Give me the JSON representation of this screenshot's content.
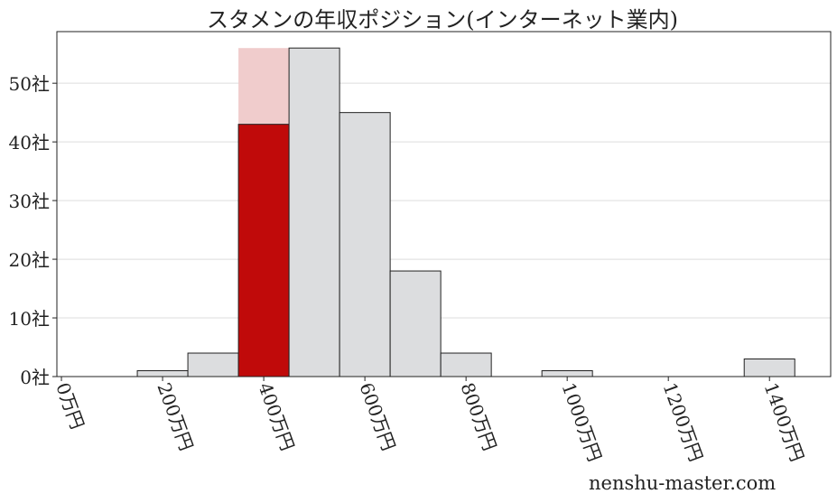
{
  "chart_data": {
    "type": "bar",
    "title": "スタメンの年収ポジション(インターネット業内)",
    "xlabel": "",
    "ylabel": "",
    "x_unit_suffix": "万円",
    "y_unit_suffix": "社",
    "bin_width": 100,
    "bins": [
      {
        "center": 200,
        "value": 1
      },
      {
        "center": 300,
        "value": 4
      },
      {
        "center": 400,
        "value": 43,
        "highlight": true,
        "highlight_total": 56
      },
      {
        "center": 500,
        "value": 56
      },
      {
        "center": 600,
        "value": 45
      },
      {
        "center": 700,
        "value": 18
      },
      {
        "center": 800,
        "value": 4
      },
      {
        "center": 1000,
        "value": 1
      },
      {
        "center": 1400,
        "value": 3
      }
    ],
    "xticks": [
      "0万円",
      "200万円",
      "400万円",
      "600万円",
      "800万円",
      "1000万円",
      "1200万円",
      "1400万円"
    ],
    "xtick_values": [
      0,
      200,
      400,
      600,
      800,
      1000,
      1200,
      1400
    ],
    "yticks": [
      "0社",
      "10社",
      "20社",
      "30社",
      "40社",
      "50社"
    ],
    "ytick_values": [
      0,
      10,
      20,
      30,
      40,
      50
    ],
    "xlim": [
      -9,
      1521
    ],
    "ylim": [
      0,
      58.8
    ],
    "grid": "horizontal",
    "colors": {
      "bar": "#dcdddf",
      "highlight": "#c00a0a",
      "highlight_bg": "#f0cccc",
      "edge": "#222222",
      "grid": "#dddddd"
    }
  },
  "watermark": "nenshu-master.com"
}
